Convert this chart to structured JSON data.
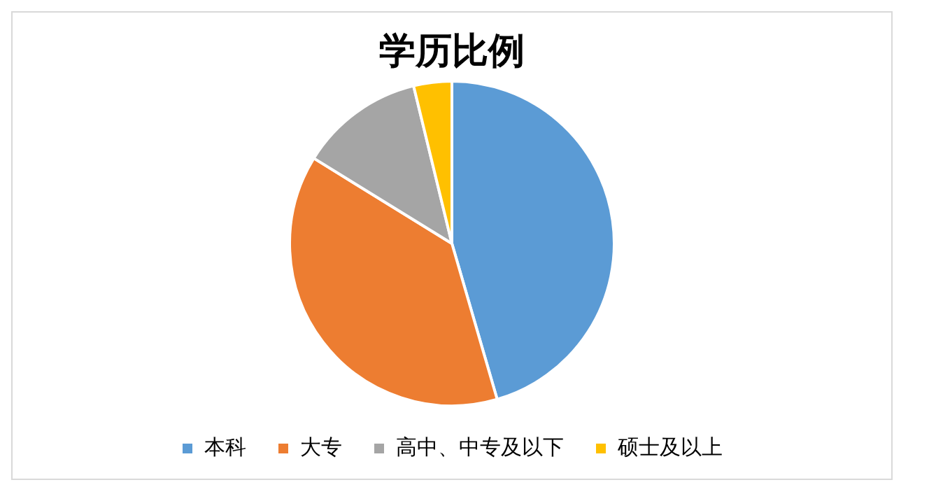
{
  "chart_data": {
    "type": "pie",
    "title": "学历比例",
    "categories": [
      "本科",
      "大专",
      "高中、中专及以下",
      "硕士及以上"
    ],
    "values": [
      45.5,
      38.3,
      12.4,
      3.8
    ],
    "colors": [
      "#5b9bd5",
      "#ed7d31",
      "#a5a5a5",
      "#ffc000"
    ],
    "legend": "bottom"
  }
}
